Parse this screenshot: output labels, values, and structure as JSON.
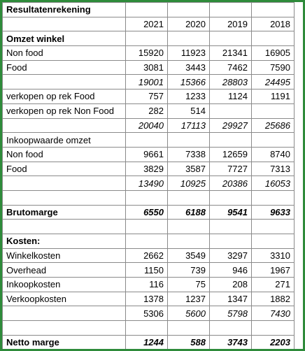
{
  "title": "Resultatenrekening",
  "years": [
    "2021",
    "2020",
    "2019",
    "2018"
  ],
  "rows": [
    {
      "label": "Omzet winkel",
      "style": "bold",
      "values": [
        "",
        "",
        "",
        ""
      ]
    },
    {
      "label": "Non food",
      "style": "normal",
      "values": [
        "15920",
        "11923",
        "21341",
        "16905"
      ]
    },
    {
      "label": "Food",
      "style": "normal",
      "values": [
        "3081",
        "3443",
        "7462",
        "7590"
      ]
    },
    {
      "label": "",
      "style": "italic",
      "values": [
        "19001",
        "15366",
        "28803",
        "24495"
      ]
    },
    {
      "label": "verkopen op rek Food",
      "style": "normal",
      "values": [
        "757",
        "1233",
        "1124",
        "1191"
      ]
    },
    {
      "label": "verkopen op rek Non Food",
      "style": "normal",
      "values": [
        "282",
        "514",
        "",
        ""
      ]
    },
    {
      "label": "",
      "style": "italic",
      "values": [
        "20040",
        "17113",
        "29927",
        "25686"
      ]
    },
    {
      "label": "Inkoopwaarde omzet",
      "style": "normal",
      "values": [
        "",
        "",
        "",
        ""
      ]
    },
    {
      "label": "Non food",
      "style": "normal",
      "values": [
        "9661",
        "7338",
        "12659",
        "8740"
      ]
    },
    {
      "label": "Food",
      "style": "normal",
      "values": [
        "3829",
        "3587",
        "7727",
        "7313"
      ]
    },
    {
      "label": "",
      "style": "italic",
      "values": [
        "13490",
        "10925",
        "20386",
        "16053"
      ]
    },
    {
      "label": "",
      "style": "normal",
      "values": [
        "",
        "",
        "",
        ""
      ]
    },
    {
      "label": "Brutomarge",
      "style": "bolditalic",
      "values": [
        "6550",
        "6188",
        "9541",
        "9633"
      ]
    },
    {
      "label": "",
      "style": "normal",
      "values": [
        "",
        "",
        "",
        ""
      ]
    },
    {
      "label": "Kosten:",
      "style": "bold",
      "values": [
        "",
        "",
        "",
        ""
      ]
    },
    {
      "label": "Winkelkosten",
      "style": "normal",
      "values": [
        "2662",
        "3549",
        "3297",
        "3310"
      ]
    },
    {
      "label": "Overhead",
      "style": "normal",
      "values": [
        "1150",
        "739",
        "946",
        "1967"
      ]
    },
    {
      "label": "Inkoopkosten",
      "style": "normal",
      "values": [
        "116",
        "75",
        "208",
        "271"
      ]
    },
    {
      "label": "Verkoopkosten",
      "style": "normal",
      "values": [
        "1378",
        "1237",
        "1347",
        "1882"
      ]
    },
    {
      "label": "",
      "style": "mixed",
      "values": [
        "5306",
        "5600",
        "5798",
        "7430"
      ]
    },
    {
      "label": "",
      "style": "normal",
      "values": [
        "",
        "",
        "",
        ""
      ]
    },
    {
      "label": "Netto marge",
      "style": "bolditalic",
      "values": [
        "1244",
        "588",
        "3743",
        "2203"
      ]
    }
  ],
  "colors": {
    "border": "#2e8b3a",
    "grid": "#8a8a8a"
  }
}
